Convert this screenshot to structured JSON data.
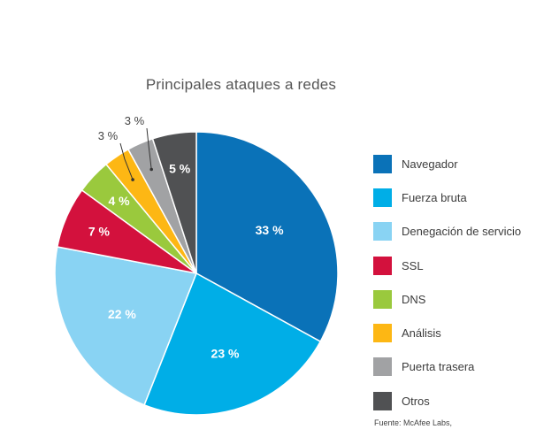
{
  "chart_data": {
    "type": "pie",
    "title": "Principales ataques a redes",
    "slices": [
      {
        "label": "Navegador",
        "value": 33,
        "display": "33 %",
        "color": "#0a72b8",
        "text_color": "#ffffff"
      },
      {
        "label": "Fuerza bruta",
        "value": 23,
        "display": "23 %",
        "color": "#00aee7",
        "text_color": "#ffffff"
      },
      {
        "label": "Denegación de servicio",
        "value": 22,
        "display": "22 %",
        "color": "#89d3f3",
        "text_color": "#ffffff"
      },
      {
        "label": "SSL",
        "value": 7,
        "display": "7 %",
        "color": "#d3113d",
        "text_color": "#ffffff"
      },
      {
        "label": "DNS",
        "value": 4,
        "display": "4 %",
        "color": "#9ac93d",
        "text_color": "#ffffff"
      },
      {
        "label": "Análisis",
        "value": 3,
        "display": "3 %",
        "color": "#fdb714",
        "text_color": "#444444",
        "outside": true
      },
      {
        "label": "Puerta trasera",
        "value": 3,
        "display": "3 %",
        "color": "#a1a2a4",
        "text_color": "#444444",
        "outside": true
      },
      {
        "label": "Otros",
        "value": 5,
        "display": "5 %",
        "color": "#505153",
        "text_color": "#ffffff"
      }
    ],
    "legend_position": "right"
  },
  "source": "Fuente: McAfee Labs,"
}
